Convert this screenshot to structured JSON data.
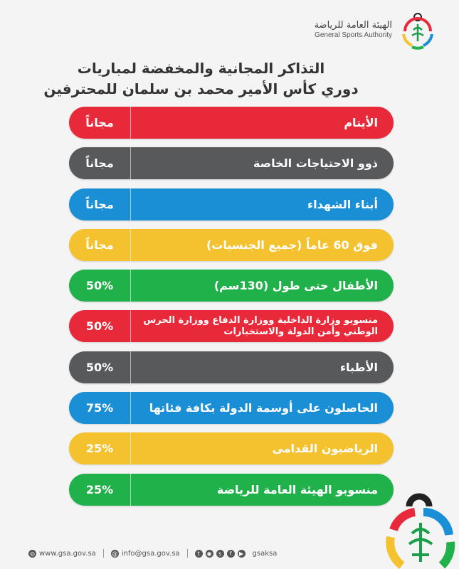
{
  "logo": {
    "name_ar": "الهيئة العامة للرياضة",
    "name_en": "General Sports Authority"
  },
  "title": {
    "line1": "التذاكر المجانية والمخفضة لمباريات",
    "line2": "دوري كأس الأمير محمد بن سلمان للمحترفين"
  },
  "rows": [
    {
      "label": "الأيتام",
      "value": "مجاناً",
      "color": "#e8293a"
    },
    {
      "label": "ذوو الاحتياجات الخاصة",
      "value": "مجاناً",
      "color": "#58595b"
    },
    {
      "label": "أبناء الشهداء",
      "value": "مجاناً",
      "color": "#1a8fd6"
    },
    {
      "label": "فوق 60 عاماً (جميع الجنسيات)",
      "value": "مجاناً",
      "color": "#f3c22e"
    },
    {
      "label": "الأطفال حتى طول (130سم)",
      "value": "50%",
      "color": "#21b14a"
    },
    {
      "label": "منسوبو وزارة الداخلية ووزارة الدفاع ووزارة الحرس الوطني وأمن الدولة والاستخبارات",
      "value": "50%",
      "color": "#e8293a"
    },
    {
      "label": "الأطباء",
      "value": "50%",
      "color": "#58595b"
    },
    {
      "label": "الحاصلون على أوسمة الدولة بكافة فئاتها",
      "value": "75%",
      "color": "#1a8fd6"
    },
    {
      "label": "الرياضيون القدامى",
      "value": "25%",
      "color": "#f3c22e"
    },
    {
      "label": "منسوبو الهيئة العامة للرياضة",
      "value": "25%",
      "color": "#21b14a"
    }
  ],
  "footer": {
    "website": "www.gsa.gov.sa",
    "email": "info@gsa.gov.sa",
    "handle": "gsaksa"
  }
}
